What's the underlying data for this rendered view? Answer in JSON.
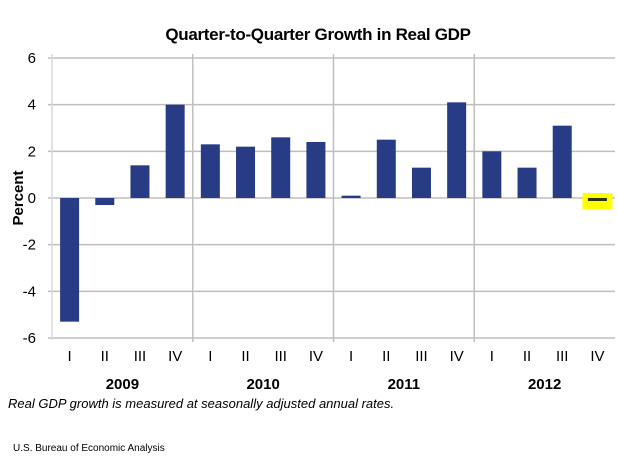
{
  "chart_data": {
    "type": "bar",
    "title": "Quarter-to-Quarter Growth in Real GDP",
    "xlabel": "",
    "ylabel": "Percent",
    "ylim": [
      -6,
      6
    ],
    "yticks": [
      6,
      4,
      2,
      0,
      -2,
      -4,
      -6
    ],
    "ytick_labels": [
      "6",
      "4",
      "2",
      "0",
      "-2",
      "-4",
      "-6"
    ],
    "grid": true,
    "legend": "none",
    "categories": [
      "I",
      "II",
      "III",
      "IV",
      "I",
      "II",
      "III",
      "IV",
      "I",
      "II",
      "III",
      "IV",
      "I",
      "II",
      "III",
      "IV"
    ],
    "groups": [
      {
        "label": "2009",
        "quarters": 4
      },
      {
        "label": "2010",
        "quarters": 4
      },
      {
        "label": "2011",
        "quarters": 4
      },
      {
        "label": "2012",
        "quarters": 4
      }
    ],
    "series": [
      {
        "name": "Real GDP growth",
        "values": [
          -5.3,
          -0.3,
          1.4,
          4.0,
          2.3,
          2.2,
          2.6,
          2.4,
          0.1,
          2.5,
          1.3,
          4.1,
          2.0,
          1.3,
          3.1,
          -0.1
        ]
      }
    ],
    "highlight": {
      "index": 15,
      "label": "2012 IV"
    },
    "colors": {
      "bar": "#283b85",
      "highlight_bar": "#2a3510",
      "highlight_box": "#ffff00",
      "grid": "#bfbfbf"
    }
  },
  "footer": {
    "note": "Real GDP growth is measured at seasonally adjusted annual rates.",
    "source": "U.S. Bureau of Economic Analysis"
  }
}
